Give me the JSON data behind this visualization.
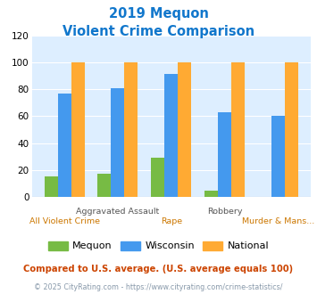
{
  "title_line1": "2019 Mequon",
  "title_line2": "Violent Crime Comparison",
  "categories": [
    "All Violent Crime",
    "Aggravated Assault",
    "Rape",
    "Robbery",
    "Murder & Mans..."
  ],
  "top_labels": [
    "",
    "Aggravated Assault",
    "",
    "Robbery",
    ""
  ],
  "bottom_labels": [
    "All Violent Crime",
    "",
    "Rape",
    "",
    "Murder & Mans..."
  ],
  "mequon": [
    15,
    17,
    29,
    5,
    0
  ],
  "wisconsin": [
    77,
    81,
    91,
    63,
    60
  ],
  "national": [
    100,
    100,
    100,
    100,
    100
  ],
  "mequon_color": "#77bb44",
  "wisconsin_color": "#4499ee",
  "national_color": "#ffaa33",
  "title_color": "#1177cc",
  "bg_color": "#ddeeff",
  "ylim": [
    0,
    120
  ],
  "yticks": [
    0,
    20,
    40,
    60,
    80,
    100,
    120
  ],
  "bar_width": 0.25,
  "legend_labels": [
    "Mequon",
    "Wisconsin",
    "National"
  ],
  "footnote1": "Compared to U.S. average. (U.S. average equals 100)",
  "footnote2": "© 2025 CityRating.com - https://www.cityrating.com/crime-statistics/",
  "footnote1_color": "#cc4400",
  "footnote2_color": "#8899aa",
  "top_label_color": "#555555",
  "bottom_label_color": "#cc7700"
}
